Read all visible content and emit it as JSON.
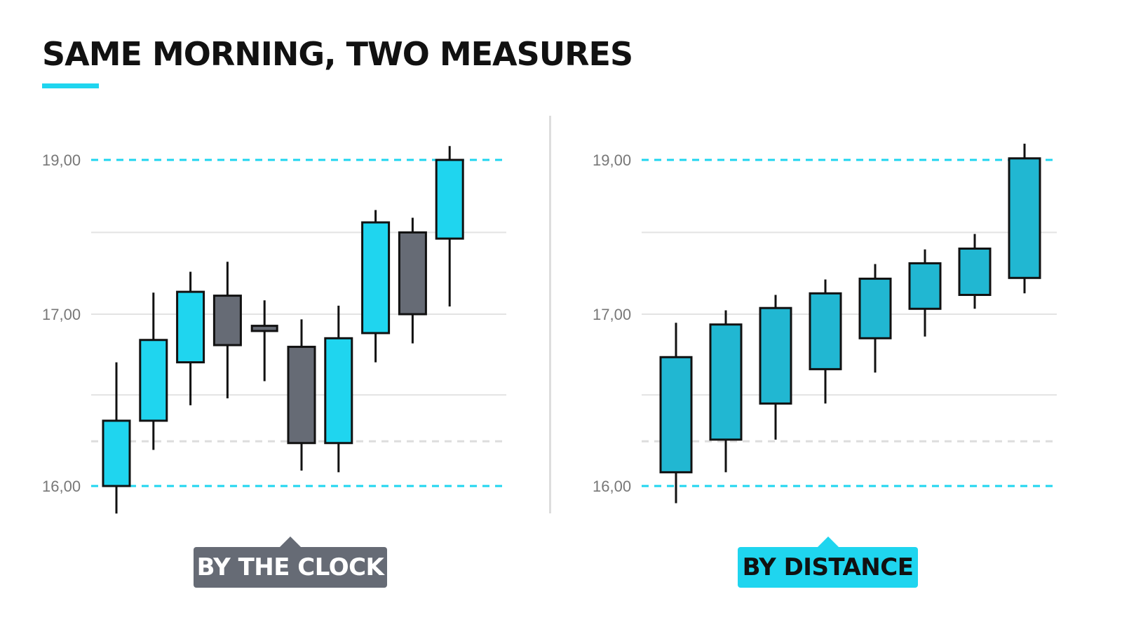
{
  "title": "SAME MORNING, TWO MEASURES",
  "colors": {
    "accent": "#1fd5ef",
    "up_left": "#1fd5ef",
    "down_left": "#666b75",
    "up_right": "#21b7d2",
    "outline": "#111111",
    "grid": "#e3e3e3",
    "divider": "#dddddd",
    "badge_left_bg": "#666b75",
    "badge_right_bg": "#1fd5ef"
  },
  "badges": {
    "left": "BY THE CLOCK",
    "right": "BY DISTANCE"
  },
  "chart_data": [
    {
      "type": "candlestick",
      "name": "by-the-clock",
      "y_tick_labels": [
        "19,00",
        "17,00",
        "16,00"
      ],
      "reference_lines": [
        {
          "value": 19.0,
          "style": "dashed",
          "color": "#1fd5ef"
        },
        {
          "value": 16.0,
          "style": "dashed",
          "color": "#1fd5ef"
        },
        {
          "value": 16.26,
          "style": "dashed",
          "color": "#dddddd"
        }
      ],
      "gridlines": [
        18.06,
        17.0,
        16.53
      ],
      "candles": [
        {
          "open": 16.0,
          "high": 16.72,
          "low": 15.84,
          "close": 16.38,
          "color": "up"
        },
        {
          "open": 16.38,
          "high": 17.28,
          "low": 16.21,
          "close": 16.85,
          "color": "up"
        },
        {
          "open": 16.72,
          "high": 17.55,
          "low": 16.47,
          "close": 17.29,
          "color": "up"
        },
        {
          "open": 17.24,
          "high": 17.68,
          "low": 16.51,
          "close": 16.82,
          "color": "down"
        },
        {
          "open": 16.92,
          "high": 17.18,
          "low": 16.61,
          "close": 16.89,
          "color": "doji"
        },
        {
          "open": 16.81,
          "high": 16.97,
          "low": 16.09,
          "close": 16.25,
          "color": "down"
        },
        {
          "open": 16.25,
          "high": 17.11,
          "low": 16.08,
          "close": 16.86,
          "color": "up"
        },
        {
          "open": 16.89,
          "high": 18.35,
          "low": 16.72,
          "close": 18.19,
          "color": "up"
        },
        {
          "open": 18.06,
          "high": 18.25,
          "low": 16.83,
          "close": 17.0,
          "color": "down"
        },
        {
          "open": 17.98,
          "high": 19.18,
          "low": 17.1,
          "close": 19.0,
          "color": "up"
        }
      ]
    },
    {
      "type": "candlestick",
      "name": "by-distance",
      "y_tick_labels": [
        "19,00",
        "17,00",
        "16,00"
      ],
      "reference_lines": [
        {
          "value": 19.0,
          "style": "dashed",
          "color": "#1fd5ef"
        },
        {
          "value": 16.0,
          "style": "dashed",
          "color": "#1fd5ef"
        },
        {
          "value": 16.26,
          "style": "dashed",
          "color": "#dddddd"
        }
      ],
      "gridlines": [
        18.06,
        17.0,
        16.53
      ],
      "candles": [
        {
          "open": 16.08,
          "high": 16.95,
          "low": 15.9,
          "close": 16.75,
          "color": "up"
        },
        {
          "open": 16.27,
          "high": 17.05,
          "low": 16.08,
          "close": 16.94,
          "color": "up"
        },
        {
          "open": 16.48,
          "high": 17.25,
          "low": 16.27,
          "close": 17.08,
          "color": "up"
        },
        {
          "open": 16.68,
          "high": 17.45,
          "low": 16.48,
          "close": 17.27,
          "color": "up"
        },
        {
          "open": 16.86,
          "high": 17.65,
          "low": 16.66,
          "close": 17.46,
          "color": "up"
        },
        {
          "open": 17.07,
          "high": 17.84,
          "low": 16.87,
          "close": 17.66,
          "color": "up"
        },
        {
          "open": 17.25,
          "high": 18.04,
          "low": 17.07,
          "close": 17.85,
          "color": "up"
        },
        {
          "open": 17.47,
          "high": 19.21,
          "low": 17.27,
          "close": 19.02,
          "color": "up"
        }
      ]
    }
  ]
}
